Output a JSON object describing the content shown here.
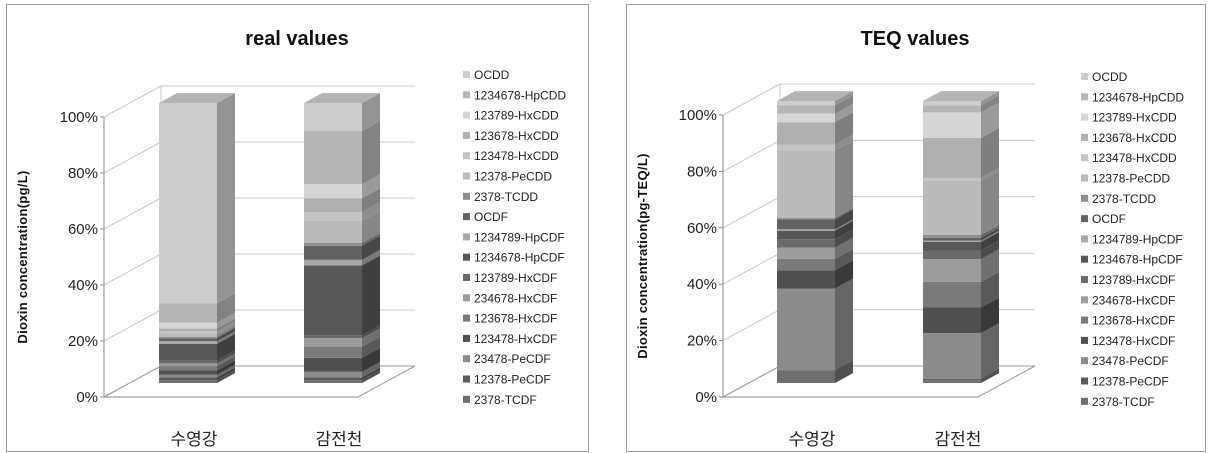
{
  "chart_data": [
    {
      "type": "bar",
      "stacked": true,
      "percent": true,
      "title": "real values",
      "xlabel": "",
      "ylabel": "Dioxin concentration(pg/L)",
      "ylim": [
        0,
        100
      ],
      "yticks": [
        "0%",
        "20%",
        "40%",
        "60%",
        "80%",
        "100%"
      ],
      "categories": [
        "수영강",
        "감전천"
      ],
      "legend_position": "right",
      "series": [
        {
          "name": "2378-TCDF",
          "color": "#6e6e6e",
          "values": [
            1.0,
            1.0
          ]
        },
        {
          "name": "12378-PeCDF",
          "color": "#5a5a5a",
          "values": [
            1.0,
            1.0
          ]
        },
        {
          "name": "23478-PeCDF",
          "color": "#8c8c8c",
          "values": [
            1.0,
            2.0
          ]
        },
        {
          "name": "123478-HxCDF",
          "color": "#4f4f4f",
          "values": [
            1.5,
            5.0
          ]
        },
        {
          "name": "123678-HxCDF",
          "color": "#7a7a7a",
          "values": [
            1.5,
            4.0
          ]
        },
        {
          "name": "234678-HxCDF",
          "color": "#9c9c9c",
          "values": [
            1.0,
            3.0
          ]
        },
        {
          "name": "123789-HxCDF",
          "color": "#6a6a6a",
          "values": [
            1.0,
            1.0
          ]
        },
        {
          "name": "1234678-HpCDF",
          "color": "#575757",
          "values": [
            6.0,
            25.0
          ]
        },
        {
          "name": "1234789-HpCDF",
          "color": "#a8a8a8",
          "values": [
            1.0,
            2.0
          ]
        },
        {
          "name": "OCDF",
          "color": "#626262",
          "values": [
            1.0,
            5.0
          ]
        },
        {
          "name": "2378-TCDD",
          "color": "#8e8e8e",
          "values": [
            0.5,
            1.0
          ]
        },
        {
          "name": "12378-PeCDD",
          "color": "#bababa",
          "values": [
            1.0,
            8.0
          ]
        },
        {
          "name": "123478-HxCDD",
          "color": "#c4c4c4",
          "values": [
            1.0,
            3.0
          ]
        },
        {
          "name": "123678-HxCDD",
          "color": "#b0b0b0",
          "values": [
            1.0,
            5.0
          ]
        },
        {
          "name": "123789-HxCDD",
          "color": "#d6d6d6",
          "values": [
            2.0,
            5.0
          ]
        },
        {
          "name": "1234678-HpCDD",
          "color": "#b6b6b6",
          "values": [
            7.0,
            19.0
          ]
        },
        {
          "name": "OCDD",
          "color": "#cdcdcd",
          "values": [
            71.5,
            10.0
          ]
        }
      ]
    },
    {
      "type": "bar",
      "stacked": true,
      "percent": true,
      "title": "TEQ values",
      "xlabel": "",
      "ylabel": "Dioxin concentration(pg-TEQ/L)",
      "ylim": [
        0,
        100
      ],
      "yticks": [
        "0%",
        "20%",
        "40%",
        "60%",
        "80%",
        "100%"
      ],
      "categories": [
        "수영강",
        "감전천"
      ],
      "legend_position": "right",
      "series": [
        {
          "name": "2378-TCDF",
          "color": "#6e6e6e",
          "values": [
            4.0,
            1.0
          ]
        },
        {
          "name": "12378-PeCDF",
          "color": "#5a5a5a",
          "values": [
            0.5,
            0.5
          ]
        },
        {
          "name": "23478-PeCDF",
          "color": "#8c8c8c",
          "values": [
            29.0,
            16.0
          ]
        },
        {
          "name": "123478-HxCDF",
          "color": "#4f4f4f",
          "values": [
            6.5,
            9.0
          ]
        },
        {
          "name": "123678-HxCDF",
          "color": "#7a7a7a",
          "values": [
            4.0,
            9.0
          ]
        },
        {
          "name": "234678-HxCDF",
          "color": "#9c9c9c",
          "values": [
            4.0,
            8.0
          ]
        },
        {
          "name": "123789-HxCDF",
          "color": "#6a6a6a",
          "values": [
            3.0,
            3.0
          ]
        },
        {
          "name": "1234678-HpCDF",
          "color": "#575757",
          "values": [
            3.0,
            3.0
          ]
        },
        {
          "name": "1234789-HpCDF",
          "color": "#a8a8a8",
          "values": [
            0.5,
            0.5
          ]
        },
        {
          "name": "OCDF",
          "color": "#626262",
          "values": [
            3.5,
            1.0
          ]
        },
        {
          "name": "2378-TCDD",
          "color": "#8e8e8e",
          "values": [
            0.5,
            1.0
          ]
        },
        {
          "name": "12378-PeCDD",
          "color": "#bababa",
          "values": [
            24.0,
            19.0
          ]
        },
        {
          "name": "123478-HxCDD",
          "color": "#c4c4c4",
          "values": [
            2.0,
            1.0
          ]
        },
        {
          "name": "123678-HxCDD",
          "color": "#b0b0b0",
          "values": [
            8.0,
            14.0
          ]
        },
        {
          "name": "123789-HxCDD",
          "color": "#d6d6d6",
          "values": [
            3.0,
            9.0
          ]
        },
        {
          "name": "1234678-HpCDD",
          "color": "#b6b6b6",
          "values": [
            3.0,
            2.5
          ]
        },
        {
          "name": "OCDD",
          "color": "#cdcdcd",
          "values": [
            1.5,
            1.5
          ]
        }
      ]
    }
  ]
}
